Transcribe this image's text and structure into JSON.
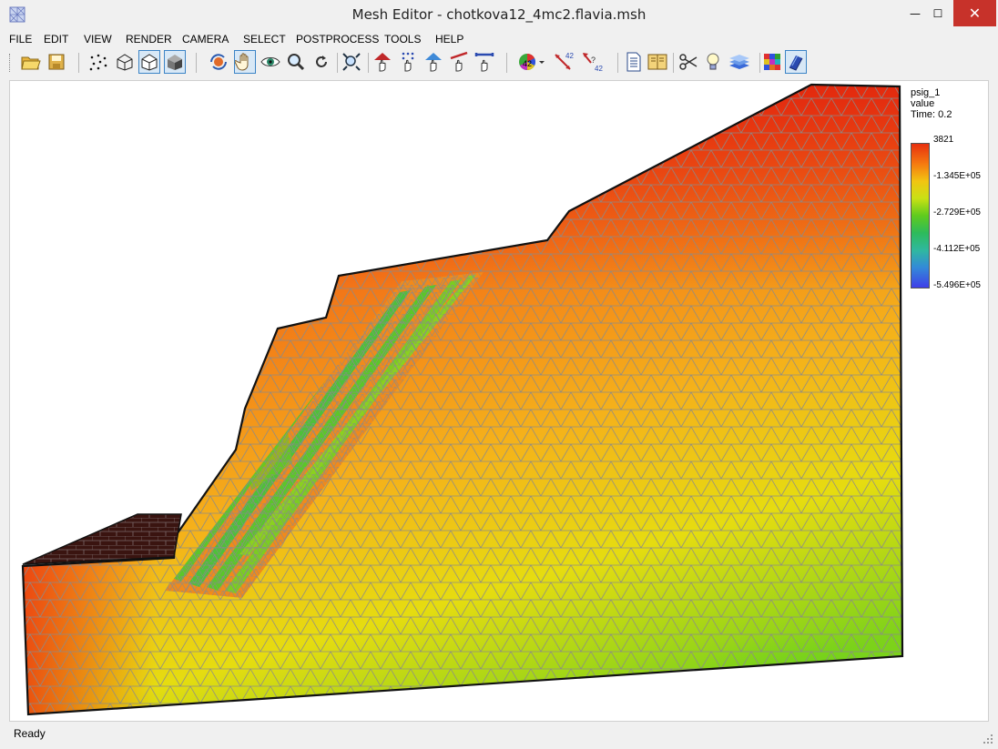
{
  "window": {
    "title": "Mesh Editor - chotkova12_4mc2.flavia.msh",
    "minimize": "—",
    "maximize": "☐",
    "close": "✕"
  },
  "menu": {
    "items": [
      {
        "label": "FILE"
      },
      {
        "label": "EDIT"
      },
      {
        "label": "VIEW"
      },
      {
        "label": "RENDER"
      },
      {
        "label": "CAMERA"
      },
      {
        "label": "SELECT"
      },
      {
        "label": "POSTPROCESS"
      },
      {
        "label": "TOOLS"
      },
      {
        "label": "HELP"
      }
    ]
  },
  "toolbar": {
    "icons": [
      "open-folder-icon",
      "save-icon",
      "points-view-icon",
      "wireframe-view-icon",
      "hidden-line-view-icon",
      "solid-view-icon",
      "rotate-icon",
      "pan-hand-icon",
      "eye-view-icon",
      "zoom-icon",
      "refresh-icon",
      "zoom-fit-icon",
      "select-node-icon",
      "select-points-icon",
      "select-element-icon",
      "select-line-icon",
      "select-boundary-icon",
      "color-wheel-icon",
      "label-numbers-icon",
      "query-icon",
      "document-icon",
      "notebook-icon",
      "scissors-icon",
      "lightbulb-icon",
      "layers-icon",
      "palette-grid-icon",
      "book-icon"
    ]
  },
  "legend": {
    "variable": "psig_1",
    "quantity": "value",
    "time": "Time: 0.2",
    "ticks": [
      "3821",
      "-1.345E+05",
      "-2.729E+05",
      "-4.112E+05",
      "-5.496E+05"
    ]
  },
  "colors": {
    "high": "#e8300f",
    "mid_high": "#f57a10",
    "mid": "#f2c412",
    "green": "#5fcb1e",
    "low": "#3f3fe8",
    "mesh_line": "#8a8a8a",
    "accent": "#3c84c6"
  },
  "chart_data": {
    "type": "heatmap",
    "title": "psig_1 value Time: 0.2",
    "colorbar_ticks": [
      3821,
      -134500,
      -272900,
      -411200,
      -549600
    ],
    "colorbar_range": [
      -549600,
      3821
    ]
  },
  "status": {
    "text": "Ready"
  }
}
